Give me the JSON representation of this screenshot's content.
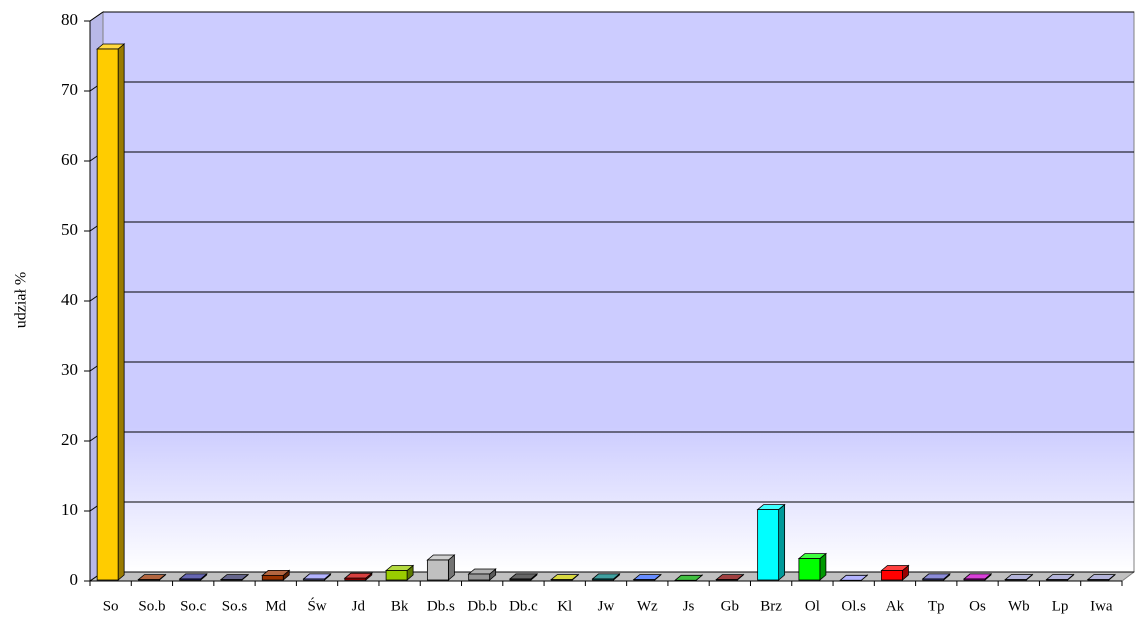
{
  "chart_data": {
    "type": "bar3d",
    "y_label": "udział %",
    "categories": [
      "So",
      "So.b",
      "So.c",
      "So.s",
      "Md",
      "Św",
      "Jd",
      "Bk",
      "Db.s",
      "Db.b",
      "Db.c",
      "Kl",
      "Jw",
      "Wz",
      "Js",
      "Gb",
      "Brz",
      "Ol",
      "Ol.s",
      "Ak",
      "Tp",
      "Os",
      "Wb",
      "Lp",
      "Iwa"
    ],
    "values": [
      76,
      0.2,
      0.3,
      0.2,
      0.8,
      0.3,
      0.4,
      1.5,
      3,
      1,
      0.3,
      0.2,
      0.3,
      0.2,
      0.1,
      0.2,
      10.2,
      3.2,
      0.1,
      1.5,
      0.3,
      0.3,
      0.2,
      0.2,
      0.2
    ],
    "colors": [
      "#ffcc00",
      "#993300",
      "#333399",
      "#333366",
      "#993300",
      "#9999ff",
      "#cc0000",
      "#99cc00",
      "#c0c0c0",
      "#969696",
      "#333333",
      "#cccc00",
      "#008080",
      "#3366ff",
      "#00aa00",
      "#800000",
      "#00ffff",
      "#00ff00",
      "#9999ff",
      "#ff0000",
      "#6666cc",
      "#cc00cc",
      "#9999cc",
      "#9999cc",
      "#9999cc"
    ],
    "ylim": [
      0,
      80
    ],
    "yticks": [
      0,
      10,
      20,
      30,
      40,
      50,
      60,
      70,
      80
    ],
    "grid": true
  }
}
